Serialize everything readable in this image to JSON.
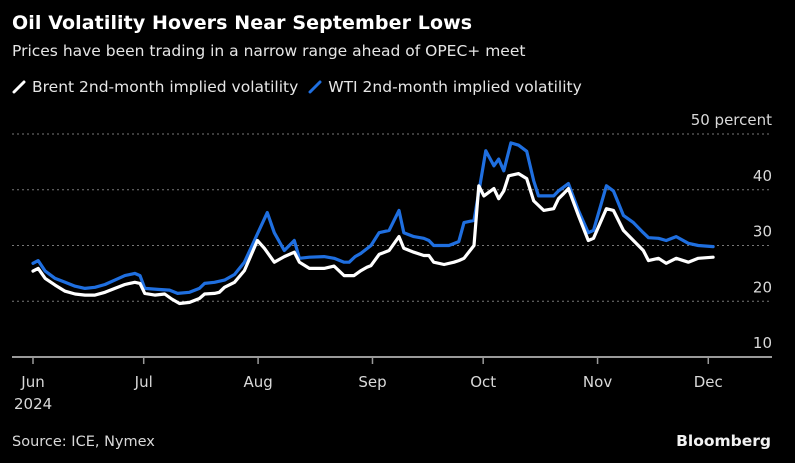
{
  "header": {
    "title": "Oil Volatility Hovers Near September Lows",
    "subtitle": "Prices have been trading in a narrow range ahead of OPEC+ meet"
  },
  "footer": {
    "source": "Source: ICE, Nymex",
    "brand": "Bloomberg"
  },
  "colors": {
    "background": "#000000",
    "brent": "#ffffff",
    "wti": "#1f6fe0",
    "grid": "#777777",
    "axis": "#9a9a9a"
  },
  "chart_data": {
    "type": "line",
    "title": "Oil Volatility Hovers Near September Lows",
    "subtitle": "Prices have been trading in a narrow range ahead of OPEC+ meet",
    "xlabel": "",
    "ylabel": "percent",
    "x_axis": {
      "min_day": 0,
      "max_day": 205,
      "ticks": [
        {
          "day": 0,
          "label": "Jun",
          "sublabel": "2024"
        },
        {
          "day": 30,
          "label": "Jul"
        },
        {
          "day": 61,
          "label": "Aug"
        },
        {
          "day": 92,
          "label": "Sep"
        },
        {
          "day": 122,
          "label": "Oct"
        },
        {
          "day": 153,
          "label": "Nov"
        },
        {
          "day": 183,
          "label": "Dec"
        }
      ],
      "origin_date": "2024-06-01"
    },
    "y_axis": {
      "ylim": [
        10,
        50
      ],
      "ticks": [
        {
          "value": 50,
          "label": "50 percent"
        },
        {
          "value": 40,
          "label": "40"
        },
        {
          "value": 30,
          "label": "30"
        },
        {
          "value": 20,
          "label": "20"
        },
        {
          "value": 10,
          "label": "10"
        }
      ],
      "grid": true,
      "position": "right"
    },
    "legend_placement": "top-left",
    "series": [
      {
        "name": "Brent 2nd-month implied volatility",
        "key": "brent",
        "points": [
          [
            0,
            25.4
          ],
          [
            1.4,
            25.9
          ],
          [
            3.3,
            24.1
          ],
          [
            6,
            22.9
          ],
          [
            8.7,
            21.8
          ],
          [
            11.4,
            21.3
          ],
          [
            14.1,
            21.1
          ],
          [
            16.8,
            21.1
          ],
          [
            19.5,
            21.6
          ],
          [
            22.2,
            22.3
          ],
          [
            24.9,
            23.0
          ],
          [
            27.6,
            23.4
          ],
          [
            29,
            23.2
          ],
          [
            30.3,
            21.4
          ],
          [
            33,
            21.1
          ],
          [
            35.7,
            21.3
          ],
          [
            37.6,
            20.4
          ],
          [
            39.7,
            19.6
          ],
          [
            42.4,
            19.8
          ],
          [
            45.1,
            20.5
          ],
          [
            46.5,
            21.3
          ],
          [
            49.2,
            21.4
          ],
          [
            50.5,
            21.6
          ],
          [
            51.9,
            22.5
          ],
          [
            54.6,
            23.4
          ],
          [
            57.3,
            25.5
          ],
          [
            60.8,
            30.9
          ],
          [
            62.7,
            29.5
          ],
          [
            65.4,
            27.0
          ],
          [
            68.1,
            28.0
          ],
          [
            70.8,
            28.8
          ],
          [
            72.2,
            27.0
          ],
          [
            74.9,
            25.9
          ],
          [
            78.9,
            25.9
          ],
          [
            81.6,
            26.3
          ],
          [
            84.3,
            24.6
          ],
          [
            87,
            24.6
          ],
          [
            88.9,
            25.5
          ],
          [
            90.5,
            26.1
          ],
          [
            91.6,
            26.4
          ],
          [
            93.8,
            28.4
          ],
          [
            96.5,
            29.1
          ],
          [
            99.2,
            31.6
          ],
          [
            100.5,
            29.5
          ],
          [
            103.2,
            28.8
          ],
          [
            105.9,
            28.2
          ],
          [
            107.3,
            28.2
          ],
          [
            108.6,
            27.0
          ],
          [
            111.4,
            26.6
          ],
          [
            114.1,
            27.0
          ],
          [
            115.4,
            27.3
          ],
          [
            116.8,
            27.7
          ],
          [
            119.5,
            30.0
          ],
          [
            120.8,
            40.7
          ],
          [
            122.2,
            38.9
          ],
          [
            124.9,
            40.2
          ],
          [
            126.2,
            38.4
          ],
          [
            127.6,
            39.8
          ],
          [
            128.9,
            42.5
          ],
          [
            131.6,
            42.9
          ],
          [
            133.8,
            42.0
          ],
          [
            135.7,
            38.0
          ],
          [
            138.4,
            36.3
          ],
          [
            141.1,
            36.6
          ],
          [
            142.4,
            38.4
          ],
          [
            143.8,
            39.3
          ],
          [
            145.1,
            40.2
          ],
          [
            147.8,
            35.4
          ],
          [
            150.5,
            30.9
          ],
          [
            151.9,
            31.3
          ],
          [
            155.4,
            36.6
          ],
          [
            157.3,
            36.3
          ],
          [
            160,
            32.7
          ],
          [
            162.7,
            30.9
          ],
          [
            165.4,
            29.1
          ],
          [
            166.8,
            27.3
          ],
          [
            169.5,
            27.7
          ],
          [
            171.6,
            26.8
          ],
          [
            174.3,
            27.7
          ],
          [
            177.6,
            27.0
          ],
          [
            180.3,
            27.7
          ],
          [
            184.3,
            27.9
          ]
        ]
      },
      {
        "name": "WTI 2nd-month implied volatility",
        "key": "wti",
        "points": [
          [
            0,
            26.8
          ],
          [
            1.4,
            27.3
          ],
          [
            3.3,
            25.4
          ],
          [
            6,
            24.1
          ],
          [
            8.7,
            23.4
          ],
          [
            11.4,
            22.7
          ],
          [
            14.1,
            22.3
          ],
          [
            16.8,
            22.5
          ],
          [
            19.5,
            23.0
          ],
          [
            22.2,
            23.8
          ],
          [
            24.9,
            24.6
          ],
          [
            27.6,
            25.0
          ],
          [
            29,
            24.6
          ],
          [
            30.3,
            22.3
          ],
          [
            34.3,
            22.1
          ],
          [
            37,
            22.0
          ],
          [
            39.2,
            21.4
          ],
          [
            42.4,
            21.6
          ],
          [
            45.1,
            22.3
          ],
          [
            46.5,
            23.2
          ],
          [
            49.2,
            23.4
          ],
          [
            51.9,
            23.8
          ],
          [
            54.6,
            24.8
          ],
          [
            57.3,
            27.0
          ],
          [
            60,
            30.9
          ],
          [
            63.5,
            35.9
          ],
          [
            65.4,
            32.3
          ],
          [
            68.1,
            29.1
          ],
          [
            70.8,
            30.9
          ],
          [
            72.2,
            27.7
          ],
          [
            74.9,
            27.9
          ],
          [
            78.9,
            28.0
          ],
          [
            81.6,
            27.7
          ],
          [
            84.3,
            27.0
          ],
          [
            85.7,
            27.0
          ],
          [
            87.3,
            28.0
          ],
          [
            88.9,
            28.6
          ],
          [
            91.6,
            30.0
          ],
          [
            93.8,
            32.3
          ],
          [
            96.5,
            32.7
          ],
          [
            99.2,
            36.3
          ],
          [
            100.5,
            32.3
          ],
          [
            103.2,
            31.6
          ],
          [
            105.9,
            31.3
          ],
          [
            107.3,
            30.9
          ],
          [
            108.6,
            30.0
          ],
          [
            112.7,
            30.0
          ],
          [
            115.4,
            30.7
          ],
          [
            116.8,
            34.1
          ],
          [
            119.5,
            34.5
          ],
          [
            122.7,
            47.0
          ],
          [
            124.9,
            44.3
          ],
          [
            126.2,
            45.5
          ],
          [
            127.6,
            43.4
          ],
          [
            129.5,
            48.4
          ],
          [
            131.6,
            48.0
          ],
          [
            133.8,
            46.9
          ],
          [
            135.7,
            41.6
          ],
          [
            137,
            38.9
          ],
          [
            141.1,
            38.9
          ],
          [
            142.4,
            39.8
          ],
          [
            145.1,
            41.1
          ],
          [
            147.8,
            36.3
          ],
          [
            150.5,
            32.3
          ],
          [
            151.9,
            32.7
          ],
          [
            155.4,
            40.7
          ],
          [
            157.3,
            39.8
          ],
          [
            160,
            35.4
          ],
          [
            162.7,
            34.1
          ],
          [
            165.4,
            32.3
          ],
          [
            166.8,
            31.4
          ],
          [
            169.5,
            31.3
          ],
          [
            171.6,
            30.9
          ],
          [
            174.3,
            31.6
          ],
          [
            177.6,
            30.4
          ],
          [
            180.3,
            30.0
          ],
          [
            184.3,
            29.8
          ]
        ]
      }
    ]
  }
}
